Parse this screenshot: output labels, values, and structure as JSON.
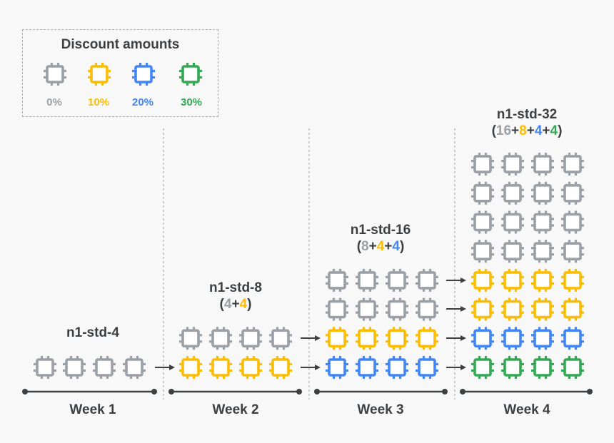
{
  "legend": {
    "title": "Discount amounts",
    "items": [
      {
        "label": "0%",
        "color": "#9aa0a6"
      },
      {
        "label": "10%",
        "color": "#fbbc04"
      },
      {
        "label": "20%",
        "color": "#4285f4"
      },
      {
        "label": "30%",
        "color": "#34a853"
      }
    ]
  },
  "icon": "cpu-chip-icon",
  "colors": {
    "text": "#3c4043",
    "line": "#3c4043",
    "divider": "#9e9e9e"
  },
  "weeks": [
    {
      "label": "Week 1",
      "machine": "n1-std-4",
      "breakdown": [],
      "stack_bottom_to_top": [
        "0%"
      ]
    },
    {
      "label": "Week 2",
      "machine": "n1-std-8",
      "breakdown": [
        "4",
        "4"
      ],
      "stack_bottom_to_top": [
        "10%",
        "0%"
      ]
    },
    {
      "label": "Week 3",
      "machine": "n1-std-16",
      "breakdown": [
        "8",
        "4",
        "4"
      ],
      "stack_bottom_to_top": [
        "20%",
        "10%",
        "0%",
        "0%"
      ]
    },
    {
      "label": "Week 4",
      "machine": "n1-std-32",
      "breakdown": [
        "16",
        "8",
        "4",
        "4"
      ],
      "stack_bottom_to_top": [
        "30%",
        "20%",
        "10%",
        "10%",
        "0%",
        "0%",
        "0%",
        "0%"
      ]
    }
  ]
}
